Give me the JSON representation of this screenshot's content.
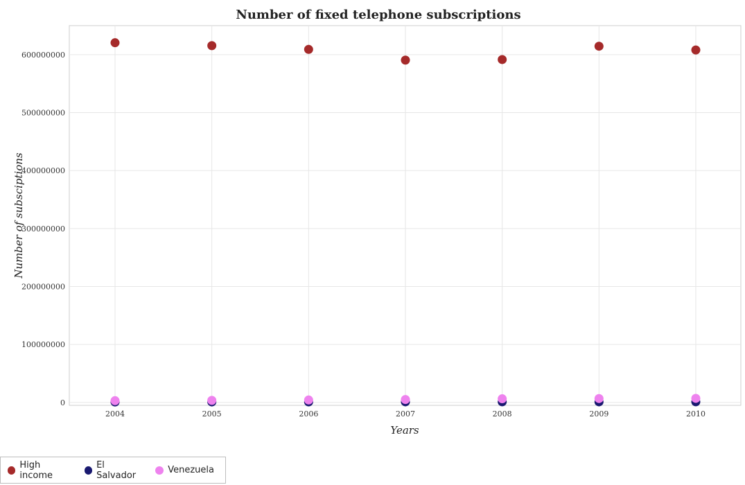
{
  "chart_data": {
    "type": "scatter",
    "title": "Number of fixed telephone subscriptions",
    "xlabel": "Years",
    "ylabel": "Number of subsciptions",
    "categories": [
      "2004",
      "2005",
      "2006",
      "2007",
      "2008",
      "2009",
      "2010"
    ],
    "y_ticks": [
      "0",
      "100000000",
      "200000000",
      "300000000",
      "400000000",
      "500000000",
      "600000000"
    ],
    "ylim": [
      -5000000,
      650000000
    ],
    "grid": true,
    "legend_position": "bottom-left",
    "series": [
      {
        "name": "High income",
        "color": "#a52a2a",
        "values": [
          620500000,
          615500000,
          609000000,
          590500000,
          591500000,
          614500000,
          608000000
        ]
      },
      {
        "name": "El Salvador",
        "color": "#191970",
        "values": [
          765000,
          889000,
          983000,
          1040000,
          1077000,
          1044000,
          1060000
        ]
      },
      {
        "name": "Venezuela",
        "color": "#ee82ee",
        "values": [
          3000000,
          3500000,
          4200000,
          5000000,
          6300000,
          6700000,
          7000000
        ]
      }
    ]
  }
}
